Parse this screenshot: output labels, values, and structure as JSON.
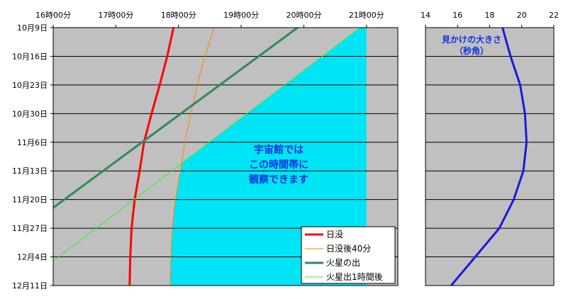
{
  "chart_data": [
    {
      "type": "line",
      "title": "",
      "x_axis": {
        "min_hour": 16,
        "max_hour": 21.5,
        "tick_hours": [
          16,
          17,
          18,
          19,
          20,
          21
        ],
        "tick_labels": [
          "16時00分",
          "17時00分",
          "18時00分",
          "19時00分",
          "20時00分",
          "21時00分"
        ]
      },
      "y_axis": {
        "min_day": 0,
        "max_day": 63,
        "inverted": true,
        "tick_days": [
          0,
          7,
          14,
          21,
          28,
          35,
          42,
          49,
          56,
          63
        ],
        "tick_labels": [
          "10月9日",
          "10月16日",
          "10月23日",
          "10月30日",
          "11月6日",
          "11月13日",
          "11月20日",
          "11月27日",
          "12月4日",
          "12月11日"
        ]
      },
      "grid": "horizontal",
      "background": "#c0c0c0",
      "series": [
        {
          "name": "日没",
          "color": "#ff0000",
          "width": 3,
          "points": [
            [
              17.92,
              0
            ],
            [
              17.82,
              7
            ],
            [
              17.7,
              14
            ],
            [
              17.57,
              21
            ],
            [
              17.45,
              28
            ],
            [
              17.38,
              35
            ],
            [
              17.3,
              42
            ],
            [
              17.25,
              49
            ],
            [
              17.23,
              56
            ],
            [
              17.22,
              63
            ]
          ]
        },
        {
          "name": "日没後40分",
          "color": "#ff8000",
          "width": 1,
          "points": [
            [
              18.57,
              0
            ],
            [
              18.42,
              7
            ],
            [
              18.3,
              14
            ],
            [
              18.2,
              21
            ],
            [
              18.1,
              28
            ],
            [
              18.03,
              35
            ],
            [
              17.95,
              42
            ],
            [
              17.9,
              49
            ],
            [
              17.88,
              56
            ],
            [
              17.87,
              63
            ]
          ]
        },
        {
          "name": "火星の出",
          "color": "#2e8b57",
          "width": 3,
          "points": [
            [
              19.9,
              0
            ],
            [
              16,
              44
            ]
          ]
        },
        {
          "name": "火星出1時間後",
          "color": "#33ee33",
          "width": 1,
          "points": [
            [
              20.9,
              0
            ],
            [
              16,
              57
            ]
          ]
        }
      ],
      "observable_region": {
        "color": "#00e5f5",
        "right_hour": 21.0,
        "boundary": "max(日没後40分, 火星出1時間後)"
      },
      "annotation": [
        "宇宙館では",
        "この時間帯に",
        "観察できます"
      ],
      "legend": {
        "position": "bottom-right"
      }
    },
    {
      "type": "line",
      "title": [
        "見かけの大きさ",
        "（秒角）"
      ],
      "x_axis": {
        "min": 14,
        "max": 22,
        "tick_values": [
          14,
          16,
          18,
          20,
          22
        ],
        "tick_labels": [
          "14",
          "16",
          "18",
          "20",
          "22"
        ]
      },
      "y_axis": {
        "shared_with": 0
      },
      "grid": "horizontal",
      "background": "#c0c0c0",
      "series": [
        {
          "name": "見かけの大きさ",
          "color": "#1a1adc",
          "width": 3,
          "points": [
            [
              18.8,
              0
            ],
            [
              19.3,
              7
            ],
            [
              19.9,
              14
            ],
            [
              20.2,
              21
            ],
            [
              20.3,
              28
            ],
            [
              20.1,
              35
            ],
            [
              19.5,
              42
            ],
            [
              18.6,
              49
            ],
            [
              17.1,
              56
            ],
            [
              15.6,
              63
            ]
          ]
        }
      ]
    }
  ]
}
